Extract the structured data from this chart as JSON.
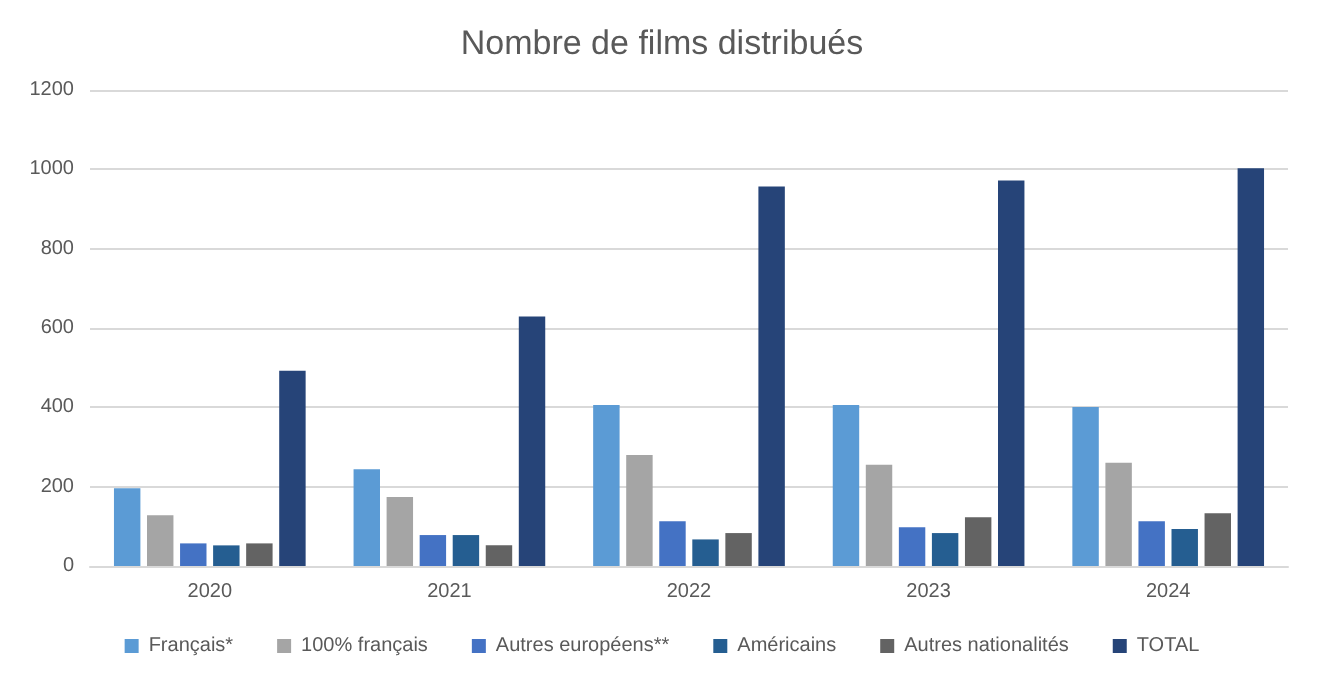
{
  "chart_data": {
    "type": "bar",
    "title": "Nombre de films distribués",
    "categories": [
      "2020",
      "2021",
      "2022",
      "2023",
      "2024"
    ],
    "series": [
      {
        "name": "Français*",
        "color": "#5b9bd5",
        "values": [
          196,
          244,
          406,
          406,
          401
        ]
      },
      {
        "name": "100% français",
        "color": "#a5a5a5",
        "values": [
          128,
          174,
          280,
          255,
          260
        ]
      },
      {
        "name": "Autres européens**",
        "color": "#4472c4",
        "values": [
          57,
          78,
          113,
          98,
          113
        ]
      },
      {
        "name": "Américains",
        "color": "#255e91",
        "values": [
          52,
          78,
          67,
          83,
          93
        ]
      },
      {
        "name": "Autres nationalités",
        "color": "#636363",
        "values": [
          57,
          52,
          83,
          123,
          133
        ]
      },
      {
        "name": "TOTAL",
        "color": "#264478",
        "values": [
          492,
          629,
          957,
          972,
          1003
        ]
      }
    ],
    "ylim": [
      0,
      1200
    ],
    "yticks": [
      0,
      200,
      400,
      600,
      800,
      1000,
      1200
    ],
    "grid": "y",
    "legend": "bottom"
  }
}
